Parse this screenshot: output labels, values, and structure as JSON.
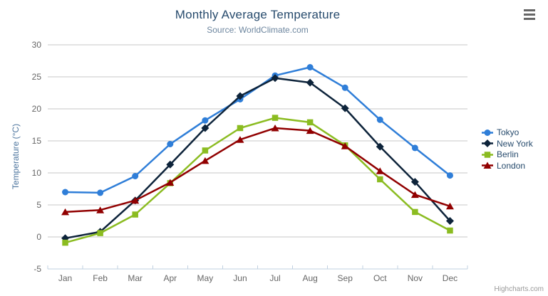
{
  "chart_data": {
    "type": "line",
    "title": "Monthly Average Temperature",
    "subtitle": "Source: WorldClimate.com",
    "xlabel": "",
    "ylabel": "Temperature (°C)",
    "categories": [
      "Jan",
      "Feb",
      "Mar",
      "Apr",
      "May",
      "Jun",
      "Jul",
      "Aug",
      "Sep",
      "Oct",
      "Nov",
      "Dec"
    ],
    "series": [
      {
        "name": "Tokyo",
        "color": "#2f7ed8",
        "marker": "circle",
        "values": [
          7.0,
          6.9,
          9.5,
          14.5,
          18.2,
          21.5,
          25.2,
          26.5,
          23.3,
          18.3,
          13.9,
          9.6
        ]
      },
      {
        "name": "New York",
        "color": "#0d233a",
        "marker": "diamond",
        "values": [
          -0.2,
          0.8,
          5.7,
          11.3,
          17.0,
          22.0,
          24.8,
          24.1,
          20.1,
          14.1,
          8.6,
          2.5
        ]
      },
      {
        "name": "Berlin",
        "color": "#8bbc21",
        "marker": "square",
        "values": [
          -0.9,
          0.6,
          3.5,
          8.4,
          13.5,
          17.0,
          18.6,
          17.9,
          14.3,
          9.0,
          3.9,
          1.0
        ]
      },
      {
        "name": "London",
        "color": "#910000",
        "marker": "triangle",
        "values": [
          3.9,
          4.2,
          5.7,
          8.5,
          11.9,
          15.2,
          17.0,
          16.6,
          14.2,
          10.3,
          6.6,
          4.8
        ]
      }
    ],
    "ylim": [
      -5,
      30
    ],
    "yticks": [
      -5,
      0,
      5,
      10,
      15,
      20,
      25,
      30
    ],
    "grid": true,
    "legend_position": "right-middle"
  },
  "credits": {
    "label": "Highcharts.com"
  },
  "context_menu": {
    "icon": "hamburger-icon"
  },
  "colors": {
    "title": "#274b6d",
    "subtitle": "#6d869f",
    "axis_title": "#4d759e",
    "axis_label": "#666666",
    "grid": "#c7c7c7",
    "axis_line": "#c0d0e0",
    "legend_text": "#274b6d",
    "credits": "#999999",
    "menu_icon": "#666666",
    "background": "#ffffff"
  }
}
